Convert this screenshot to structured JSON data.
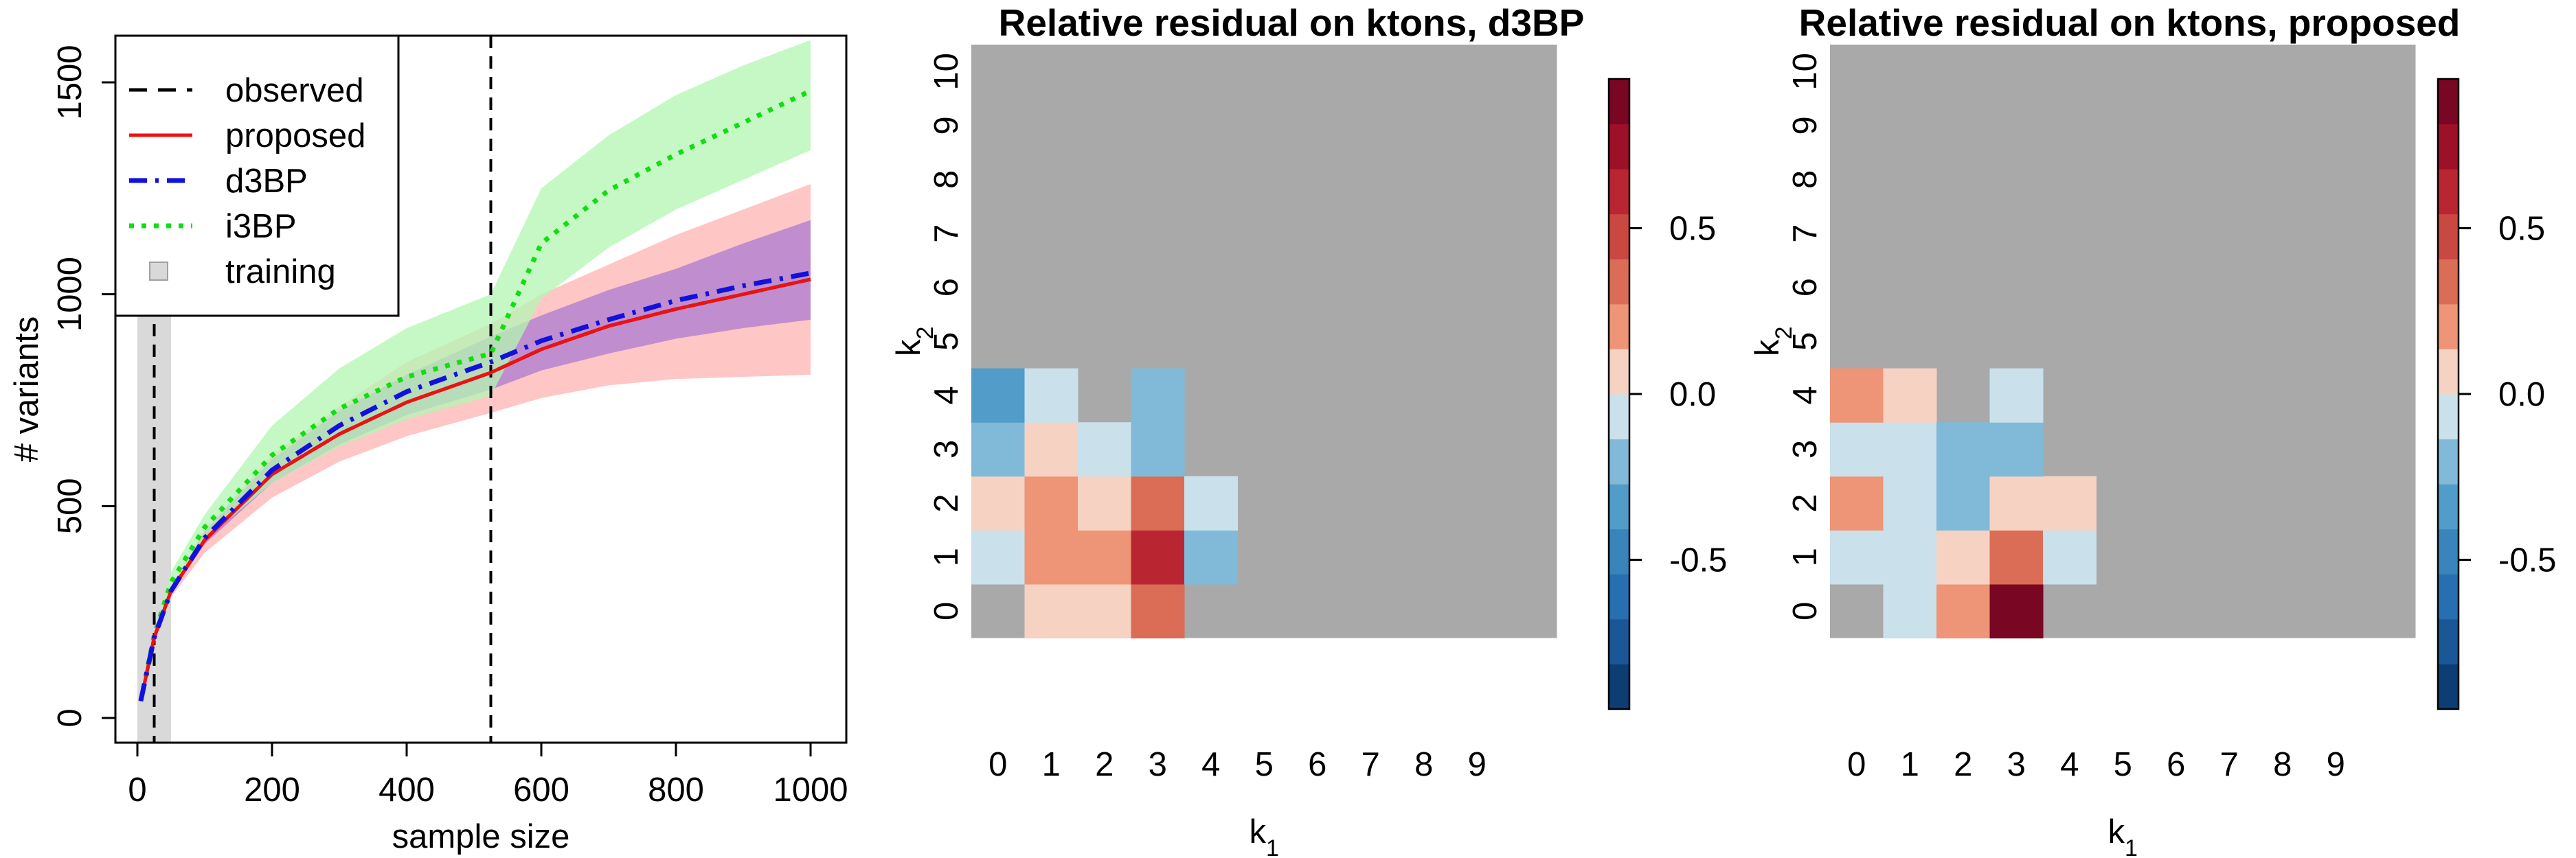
{
  "colors": {
    "observed": "#000000",
    "proposed": "#ee1111",
    "proposed_band": "#ffb3b3",
    "d3BP": "#1111dd",
    "d3BP_band": "#b080d0",
    "i3BP": "#11dd11",
    "i3BP_band": "#b3f5b3",
    "training": "#d9d9d9",
    "heatmap_na": "#a9a9a9"
  },
  "chart_data": [
    {
      "type": "line",
      "title": "",
      "xlabel": "sample size",
      "ylabel": "# variants",
      "xlim": [
        0,
        1000
      ],
      "ylim": [
        0,
        1500
      ],
      "xticks": [
        0,
        200,
        400,
        600,
        800,
        1000
      ],
      "yticks": [
        0,
        500,
        1000,
        1500
      ],
      "grid": false,
      "legend_position": "top-left",
      "legend": [
        {
          "label": "observed",
          "style": "dashed"
        },
        {
          "label": "proposed",
          "style": "solid"
        },
        {
          "label": "d3BP",
          "style": "dotdash"
        },
        {
          "label": "i3BP",
          "style": "dotted"
        },
        {
          "label": "training",
          "style": "square"
        }
      ],
      "training_region": [
        0,
        50
      ],
      "vlines": [
        25,
        525
      ],
      "x": [
        5,
        25,
        50,
        100,
        200,
        300,
        400,
        525,
        600,
        700,
        800,
        900,
        1000
      ],
      "series": [
        {
          "name": "observed",
          "values": [
            40,
            190,
            300,
            420,
            575,
            670,
            745,
            815,
            870,
            925,
            965,
            1000,
            1035
          ]
        },
        {
          "name": "proposed",
          "values": [
            40,
            190,
            300,
            420,
            575,
            670,
            745,
            815,
            870,
            925,
            965,
            1000,
            1035
          ],
          "band_lower": [
            40,
            185,
            285,
            390,
            520,
            605,
            665,
            720,
            755,
            785,
            800,
            805,
            810
          ],
          "band_upper": [
            40,
            195,
            310,
            445,
            620,
            735,
            840,
            930,
            1000,
            1070,
            1140,
            1200,
            1260
          ]
        },
        {
          "name": "d3BP",
          "values": [
            40,
            190,
            300,
            425,
            585,
            690,
            770,
            840,
            890,
            940,
            985,
            1020,
            1050
          ],
          "band_lower": [
            40,
            188,
            295,
            410,
            555,
            645,
            715,
            775,
            820,
            860,
            895,
            920,
            940
          ],
          "band_upper": [
            40,
            192,
            305,
            440,
            610,
            725,
            810,
            900,
            950,
            1010,
            1060,
            1120,
            1175
          ]
        },
        {
          "name": "i3BP",
          "values": [
            40,
            195,
            320,
            450,
            620,
            730,
            805,
            860,
            1120,
            1245,
            1330,
            1405,
            1480
          ],
          "band_lower": [
            40,
            190,
            300,
            420,
            555,
            640,
            705,
            760,
            990,
            1110,
            1200,
            1270,
            1340
          ],
          "band_upper": [
            40,
            200,
            345,
            480,
            690,
            825,
            920,
            1000,
            1250,
            1375,
            1470,
            1540,
            1600
          ]
        }
      ]
    },
    {
      "type": "heatmap",
      "title": "Relative residual on ktons, d3BP",
      "xlabel": "k1",
      "ylabel": "k2",
      "x": [
        0,
        1,
        2,
        3,
        4,
        5,
        6,
        7,
        8,
        9
      ],
      "y": [
        0,
        1,
        2,
        3,
        4,
        5,
        6,
        7,
        8,
        9,
        10
      ],
      "zlim": [
        -0.95,
        0.95
      ],
      "colorbar_ticks": [
        -0.5,
        0.0,
        0.5
      ],
      "colorbar_tick_labels": [
        "-0.5",
        "0.0",
        "0.5"
      ],
      "cells": [
        {
          "k1": 1,
          "k2": 0,
          "value": 0.07
        },
        {
          "k1": 2,
          "k2": 0,
          "value": 0.07
        },
        {
          "k1": 3,
          "k2": 0,
          "value": 0.35
        },
        {
          "k1": 0,
          "k2": 1,
          "value": -0.1
        },
        {
          "k1": 1,
          "k2": 1,
          "value": 0.22
        },
        {
          "k1": 2,
          "k2": 1,
          "value": 0.22
        },
        {
          "k1": 3,
          "k2": 1,
          "value": 0.62
        },
        {
          "k1": 4,
          "k2": 1,
          "value": -0.22
        },
        {
          "k1": 0,
          "k2": 2,
          "value": 0.07
        },
        {
          "k1": 1,
          "k2": 2,
          "value": 0.22
        },
        {
          "k1": 2,
          "k2": 2,
          "value": 0.07
        },
        {
          "k1": 3,
          "k2": 2,
          "value": 0.35
        },
        {
          "k1": 4,
          "k2": 2,
          "value": -0.07
        },
        {
          "k1": 0,
          "k2": 3,
          "value": -0.22
        },
        {
          "k1": 1,
          "k2": 3,
          "value": 0.07
        },
        {
          "k1": 2,
          "k2": 3,
          "value": -0.1
        },
        {
          "k1": 3,
          "k2": 3,
          "value": -0.22
        },
        {
          "k1": 0,
          "k2": 4,
          "value": -0.35
        },
        {
          "k1": 1,
          "k2": 4,
          "value": -0.07
        },
        {
          "k1": 3,
          "k2": 4,
          "value": -0.22
        }
      ]
    },
    {
      "type": "heatmap",
      "title": "Relative residual on ktons, proposed",
      "xlabel": "k1",
      "ylabel": "k2",
      "x": [
        0,
        1,
        2,
        3,
        4,
        5,
        6,
        7,
        8,
        9
      ],
      "y": [
        0,
        1,
        2,
        3,
        4,
        5,
        6,
        7,
        8,
        9,
        10
      ],
      "zlim": [
        -0.95,
        0.95
      ],
      "colorbar_ticks": [
        -0.5,
        0.0,
        0.5
      ],
      "colorbar_tick_labels": [
        "-0.5",
        "0.0",
        "0.5"
      ],
      "cells": [
        {
          "k1": 1,
          "k2": 0,
          "value": -0.07
        },
        {
          "k1": 2,
          "k2": 0,
          "value": 0.22
        },
        {
          "k1": 3,
          "k2": 0,
          "value": 0.92
        },
        {
          "k1": 0,
          "k2": 1,
          "value": -0.07
        },
        {
          "k1": 1,
          "k2": 1,
          "value": -0.07
        },
        {
          "k1": 2,
          "k2": 1,
          "value": 0.07
        },
        {
          "k1": 3,
          "k2": 1,
          "value": 0.35
        },
        {
          "k1": 4,
          "k2": 1,
          "value": -0.07
        },
        {
          "k1": 0,
          "k2": 2,
          "value": 0.22
        },
        {
          "k1": 1,
          "k2": 2,
          "value": -0.07
        },
        {
          "k1": 2,
          "k2": 2,
          "value": -0.22
        },
        {
          "k1": 3,
          "k2": 2,
          "value": 0.07
        },
        {
          "k1": 4,
          "k2": 2,
          "value": 0.07
        },
        {
          "k1": 0,
          "k2": 3,
          "value": -0.07
        },
        {
          "k1": 1,
          "k2": 3,
          "value": -0.07
        },
        {
          "k1": 2,
          "k2": 3,
          "value": -0.22
        },
        {
          "k1": 3,
          "k2": 3,
          "value": -0.22
        },
        {
          "k1": 0,
          "k2": 4,
          "value": 0.22
        },
        {
          "k1": 1,
          "k2": 4,
          "value": 0.07
        },
        {
          "k1": 3,
          "k2": 4,
          "value": -0.07
        }
      ]
    }
  ]
}
